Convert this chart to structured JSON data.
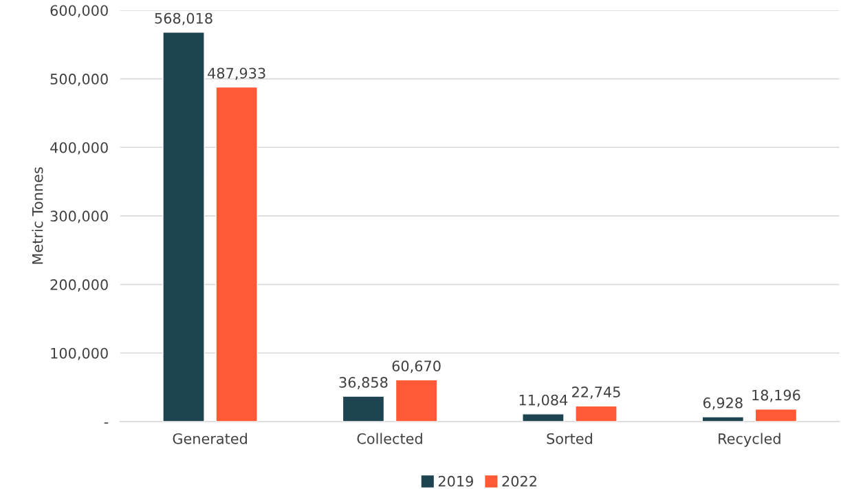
{
  "chart_data": {
    "type": "bar",
    "ylabel": "Metric Tonnes",
    "categories": [
      "Generated",
      "Collected",
      "Sorted",
      "Recycled"
    ],
    "series": [
      {
        "name": "2019",
        "color": "#1e4451",
        "values": [
          568018,
          36858,
          11084,
          6928
        ],
        "value_labels": [
          "568,018",
          "36,858",
          "11,084",
          "6,928"
        ]
      },
      {
        "name": "2022",
        "color": "#ff5a35",
        "values": [
          487933,
          60670,
          22745,
          18196
        ],
        "value_labels": [
          "487,933",
          "60,670",
          "22,745",
          "18,196"
        ]
      }
    ],
    "ylim": [
      0,
      600000
    ],
    "yticks": [
      {
        "value": 0,
        "label": "-"
      },
      {
        "value": 100000,
        "label": "100,000"
      },
      {
        "value": 200000,
        "label": "200,000"
      },
      {
        "value": 300000,
        "label": "300,000"
      },
      {
        "value": 400000,
        "label": "400,000"
      },
      {
        "value": 500000,
        "label": "500,000"
      },
      {
        "value": 600000,
        "label": "600,000"
      }
    ],
    "grid": "y",
    "legend": "bottom"
  }
}
